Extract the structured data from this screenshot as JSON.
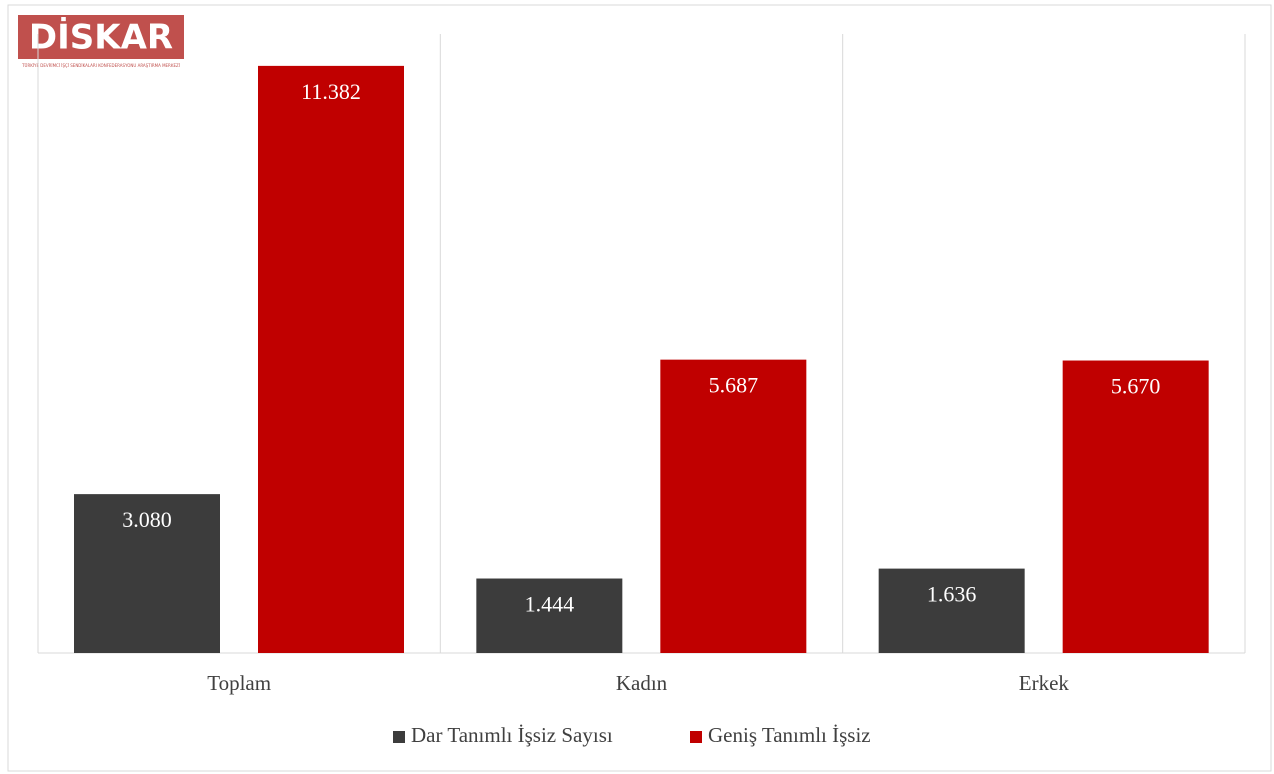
{
  "logo": {
    "text": "DİSKAR",
    "subtitle": "TÜRKİYE DEVRİMCİ İŞÇİ SENDİKALARI KONFEDERASYONU ARAŞTIRMA MERKEZİ"
  },
  "chart_data": {
    "type": "bar",
    "categories": [
      "Toplam",
      "Kadın",
      "Erkek"
    ],
    "series": [
      {
        "name": "Dar Tanımlı İşsiz Sayısı",
        "color": "#3c3c3c",
        "values": [
          3080,
          1444,
          1636
        ],
        "value_labels": [
          "3.080",
          "1.444",
          "1.636"
        ]
      },
      {
        "name": "Geniş Tanımlı İşsiz",
        "color": "#c00000",
        "values": [
          11382,
          5687,
          5670
        ],
        "value_labels": [
          "11.382",
          "5.687",
          "5.670"
        ]
      }
    ],
    "ylim": [
      0,
      12000
    ],
    "legend": "bottom"
  }
}
